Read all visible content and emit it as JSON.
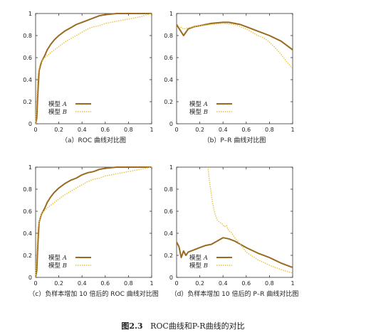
{
  "figure_caption": {
    "number": "图2.3",
    "text": "ROC曲线和P-R曲线的对比"
  },
  "colors": {
    "model_a": "#9a6a1f",
    "model_b": "#e8c13c",
    "axis": "#333333"
  },
  "chart_data": [
    {
      "type": "line",
      "subtitle": "（a）ROC 曲线对比图",
      "xlim": [
        0,
        1
      ],
      "ylim": [
        0,
        1
      ],
      "xticks": [
        0,
        0.2,
        0.4,
        0.6,
        0.8,
        1
      ],
      "yticks": [
        0,
        0.2,
        0.4,
        0.6,
        0.8,
        1
      ],
      "tick_labels_x": [
        "0",
        "0.2",
        "0.4",
        "0.6",
        "0.8",
        "1"
      ],
      "tick_labels_y": [
        "0",
        "0.2",
        "0.4",
        "0.6",
        "0.8",
        "1"
      ],
      "legend": "bottom-left",
      "series": [
        {
          "name": "模型 A",
          "style": "solid",
          "x": [
            0,
            0.01,
            0.02,
            0.03,
            0.05,
            0.08,
            0.1,
            0.13,
            0.16,
            0.2,
            0.25,
            0.3,
            0.35,
            0.4,
            0.45,
            0.5,
            0.55,
            0.6,
            0.7,
            0.8,
            0.9,
            1
          ],
          "y": [
            0,
            0.05,
            0.3,
            0.48,
            0.56,
            0.62,
            0.67,
            0.72,
            0.76,
            0.8,
            0.84,
            0.87,
            0.9,
            0.92,
            0.94,
            0.96,
            0.98,
            0.99,
            1,
            1,
            1,
            1
          ]
        },
        {
          "name": "模型 B",
          "style": "dotted",
          "x": [
            0,
            0.02,
            0.04,
            0.06,
            0.1,
            0.15,
            0.2,
            0.25,
            0.3,
            0.35,
            0.4,
            0.45,
            0.5,
            0.55,
            0.6,
            0.7,
            0.8,
            0.9,
            1
          ],
          "y": [
            0,
            0.45,
            0.55,
            0.58,
            0.62,
            0.66,
            0.7,
            0.74,
            0.77,
            0.8,
            0.83,
            0.86,
            0.88,
            0.89,
            0.91,
            0.93,
            0.95,
            0.97,
            1
          ]
        }
      ]
    },
    {
      "type": "line",
      "subtitle": "（b）P–R 曲线对比图",
      "xlim": [
        0,
        1
      ],
      "ylim": [
        0,
        1
      ],
      "xticks": [
        0,
        0.2,
        0.4,
        0.6,
        0.8,
        1
      ],
      "yticks": [
        0,
        0.2,
        0.4,
        0.6,
        0.8,
        1
      ],
      "tick_labels_x": [
        "0",
        "0.2",
        "0.4",
        "0.6",
        "0.8",
        "1"
      ],
      "tick_labels_y": [
        "0",
        "0.2",
        "0.4",
        "0.6",
        "0.8",
        "1"
      ],
      "legend": "bottom-left",
      "series": [
        {
          "name": "模型 A",
          "style": "solid",
          "x": [
            0,
            0.03,
            0.06,
            0.1,
            0.15,
            0.2,
            0.3,
            0.4,
            0.45,
            0.5,
            0.55,
            0.6,
            0.7,
            0.8,
            0.9,
            1
          ],
          "y": [
            0.9,
            0.85,
            0.8,
            0.86,
            0.88,
            0.89,
            0.91,
            0.92,
            0.92,
            0.91,
            0.9,
            0.88,
            0.84,
            0.8,
            0.75,
            0.67
          ]
        },
        {
          "name": "模型 B",
          "style": "dotted",
          "x": [
            0,
            0.03,
            0.06,
            0.1,
            0.15,
            0.2,
            0.3,
            0.4,
            0.5,
            0.55,
            0.6,
            0.65,
            0.7,
            0.75,
            0.8,
            0.85,
            0.9,
            0.95,
            1
          ],
          "y": [
            0.87,
            0.88,
            0.86,
            0.87,
            0.88,
            0.89,
            0.9,
            0.91,
            0.9,
            0.88,
            0.86,
            0.83,
            0.8,
            0.78,
            0.74,
            0.69,
            0.63,
            0.56,
            0.5
          ]
        }
      ]
    },
    {
      "type": "line",
      "subtitle": "（c）负样本增加 10 倍后的 ROC 曲线对比图",
      "xlim": [
        0,
        1
      ],
      "ylim": [
        0,
        1
      ],
      "xticks": [
        0,
        0.2,
        0.4,
        0.6,
        0.8,
        1
      ],
      "yticks": [
        0,
        0.2,
        0.4,
        0.6,
        0.8,
        1
      ],
      "tick_labels_x": [
        "0",
        "0.2",
        "0.4",
        "0.6",
        "0.8",
        "1"
      ],
      "tick_labels_y": [
        "0",
        "0.2",
        "0.4",
        "0.6",
        "0.8",
        "1"
      ],
      "legend": "bottom-left",
      "series": [
        {
          "name": "模型 A",
          "style": "solid",
          "x": [
            0,
            0.01,
            0.02,
            0.03,
            0.05,
            0.08,
            0.1,
            0.13,
            0.16,
            0.2,
            0.25,
            0.3,
            0.35,
            0.4,
            0.45,
            0.5,
            0.55,
            0.6,
            0.7,
            0.8,
            0.9,
            1
          ],
          "y": [
            0,
            0.06,
            0.32,
            0.5,
            0.57,
            0.63,
            0.68,
            0.73,
            0.77,
            0.81,
            0.85,
            0.88,
            0.9,
            0.93,
            0.95,
            0.96,
            0.98,
            0.99,
            1,
            1,
            1,
            1
          ]
        },
        {
          "name": "模型 B",
          "style": "dotted",
          "x": [
            0,
            0.02,
            0.04,
            0.06,
            0.1,
            0.15,
            0.2,
            0.25,
            0.3,
            0.35,
            0.4,
            0.45,
            0.5,
            0.55,
            0.6,
            0.7,
            0.8,
            0.9,
            1
          ],
          "y": [
            0,
            0.45,
            0.55,
            0.59,
            0.63,
            0.67,
            0.71,
            0.75,
            0.78,
            0.81,
            0.84,
            0.87,
            0.89,
            0.9,
            0.92,
            0.94,
            0.96,
            0.98,
            1
          ]
        }
      ]
    },
    {
      "type": "line",
      "subtitle": "（d）负样本增加 10 倍后的 P–R 曲线对比图",
      "xlim": [
        0,
        1
      ],
      "ylim": [
        0,
        1
      ],
      "xticks": [
        0,
        0.2,
        0.4,
        0.6,
        0.8,
        1
      ],
      "yticks": [
        0,
        0.2,
        0.4,
        0.6,
        0.8,
        1
      ],
      "tick_labels_x": [
        "0",
        "0.2",
        "0.4",
        "0.6",
        "0.8",
        "1"
      ],
      "tick_labels_y": [
        "0",
        "0.2",
        "0.4",
        "0.6",
        "0.8",
        "1"
      ],
      "legend": "bottom-left",
      "series": [
        {
          "name": "模型 A",
          "style": "solid",
          "x": [
            0,
            0.02,
            0.04,
            0.06,
            0.08,
            0.1,
            0.15,
            0.2,
            0.25,
            0.3,
            0.35,
            0.4,
            0.45,
            0.5,
            0.6,
            0.7,
            0.8,
            0.9,
            1
          ],
          "y": [
            0.32,
            0.28,
            0.18,
            0.24,
            0.2,
            0.23,
            0.25,
            0.27,
            0.29,
            0.3,
            0.33,
            0.36,
            0.35,
            0.33,
            0.27,
            0.22,
            0.18,
            0.13,
            0.09
          ]
        },
        {
          "name": "模型 B",
          "style": "dotted",
          "x": [
            0.27,
            0.28,
            0.29,
            0.3,
            0.31,
            0.32,
            0.33,
            0.34,
            0.35,
            0.37,
            0.39,
            0.41,
            0.43,
            0.45,
            0.47,
            0.5,
            0.55,
            0.6,
            0.7,
            0.8,
            0.9,
            1
          ],
          "y": [
            1,
            0.9,
            0.82,
            0.75,
            0.68,
            0.62,
            0.58,
            0.55,
            0.52,
            0.5,
            0.49,
            0.46,
            0.47,
            0.42,
            0.41,
            0.36,
            0.3,
            0.23,
            0.16,
            0.11,
            0.07,
            0.04
          ]
        }
      ]
    }
  ]
}
